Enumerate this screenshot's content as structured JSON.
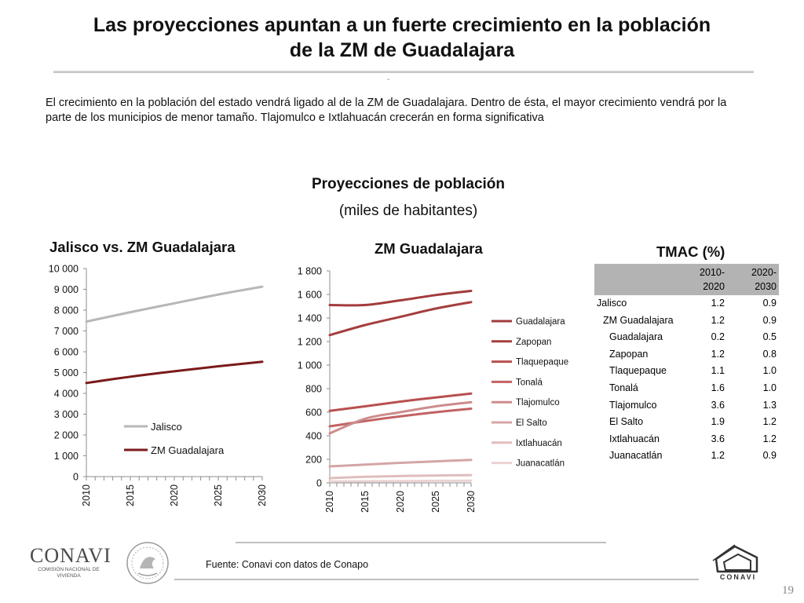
{
  "header": {
    "title_line1": "Las proyecciones apuntan a un fuerte crecimiento en la población",
    "title_line2": "de la ZM de Guadalajara",
    "dash": "-",
    "intro": "El crecimiento en la población del estado vendrá ligado al de la ZM de Guadalajara. Dentro de ésta, el mayor crecimiento vendrá por la parte de los municipios de menor tamaño. Tlajomulco e Ixtlahuacán crecerán en forma significativa"
  },
  "section": {
    "title": "Proyecciones de población",
    "subtitle": "(miles de habitantes)"
  },
  "chart_data": [
    {
      "type": "line",
      "title": "Jalisco vs. ZM Guadalajara",
      "x": [
        2010,
        2015,
        2020,
        2025,
        2030
      ],
      "x_ticks": [
        "2010",
        "2015",
        "2020",
        "2025",
        "2030"
      ],
      "y_ticks": [
        "0",
        "1 000",
        "2 000",
        "3 000",
        "4 000",
        "5 000",
        "6 000",
        "7 000",
        "8 000",
        "9 000",
        "10 000"
      ],
      "ylim": [
        0,
        10000
      ],
      "grid": false,
      "legend": "inside-bottom-left",
      "series": [
        {
          "name": "Jalisco",
          "color": "#b7b7b7",
          "values": [
            7450,
            7900,
            8330,
            8750,
            9130
          ]
        },
        {
          "name": "ZM Guadalajara",
          "color": "#7b1a1a",
          "values": [
            4500,
            4800,
            5060,
            5300,
            5520
          ]
        }
      ]
    },
    {
      "type": "line",
      "title": "ZM Guadalajara",
      "x": [
        2010,
        2015,
        2020,
        2025,
        2030
      ],
      "x_ticks": [
        "2010",
        "2015",
        "2020",
        "2025",
        "2030"
      ],
      "y_ticks": [
        "0",
        "200",
        "400",
        "600",
        "800",
        "1 000",
        "1 200",
        "1 400",
        "1 600",
        "1 800"
      ],
      "ylim": [
        0,
        1800
      ],
      "grid": false,
      "legend": "right",
      "series": [
        {
          "name": "Guadalajara",
          "color": "#a33b3b",
          "values": [
            1510,
            1510,
            1550,
            1595,
            1630
          ]
        },
        {
          "name": "Zapopan",
          "color": "#a53e3e",
          "values": [
            1255,
            1340,
            1410,
            1480,
            1535
          ]
        },
        {
          "name": "Tlaquepaque",
          "color": "#b94f4f",
          "values": [
            612,
            650,
            690,
            725,
            758
          ]
        },
        {
          "name": "Tonalá",
          "color": "#c26262",
          "values": [
            480,
            525,
            565,
            600,
            630
          ]
        },
        {
          "name": "Tlajomulco",
          "color": "#cd8c8c",
          "values": [
            420,
            545,
            600,
            650,
            685
          ]
        },
        {
          "name": "El Salto",
          "color": "#d4a5a5",
          "values": [
            140,
            155,
            170,
            183,
            195
          ]
        },
        {
          "name": "Ixtlahuacán",
          "color": "#e0bdbd",
          "values": [
            40,
            52,
            58,
            63,
            66
          ]
        },
        {
          "name": "Juanacatlán",
          "color": "#ebd3d3",
          "values": [
            12,
            14,
            15,
            17,
            18
          ]
        }
      ]
    },
    {
      "type": "table",
      "title": "TMAC (%)",
      "columns": [
        "",
        "2010-\n2020",
        "2020-\n2030"
      ],
      "rows": [
        {
          "label": "Jalisco",
          "indent": 0,
          "v1": "1.2",
          "v2": "0.9"
        },
        {
          "label": "ZM Guadalajara",
          "indent": 1,
          "v1": "1.2",
          "v2": "0.9"
        },
        {
          "label": "Guadalajara",
          "indent": 2,
          "v1": "0.2",
          "v2": "0.5"
        },
        {
          "label": "Zapopan",
          "indent": 2,
          "v1": "1.2",
          "v2": "0.8"
        },
        {
          "label": "Tlaquepaque",
          "indent": 2,
          "v1": "1.1",
          "v2": "1.0"
        },
        {
          "label": "Tonalá",
          "indent": 2,
          "v1": "1.6",
          "v2": "1.0"
        },
        {
          "label": "Tlajomulco",
          "indent": 2,
          "v1": "3.6",
          "v2": "1.3"
        },
        {
          "label": "El Salto",
          "indent": 2,
          "v1": "1.9",
          "v2": "1.2"
        },
        {
          "label": "Ixtlahuacán",
          "indent": 2,
          "v1": "3.6",
          "v2": "1.2"
        },
        {
          "label": "Juanacatlán",
          "indent": 2,
          "v1": "1.2",
          "v2": "0.9"
        }
      ]
    }
  ],
  "footer": {
    "source": "Fuente: Conavi con datos de Conapo",
    "page_number": "19",
    "logo_name": "CONAVI",
    "logo_sub": "COMISIÓN NACIONAL DE VIVIENDA",
    "right_logo_text": "CONAVI"
  }
}
